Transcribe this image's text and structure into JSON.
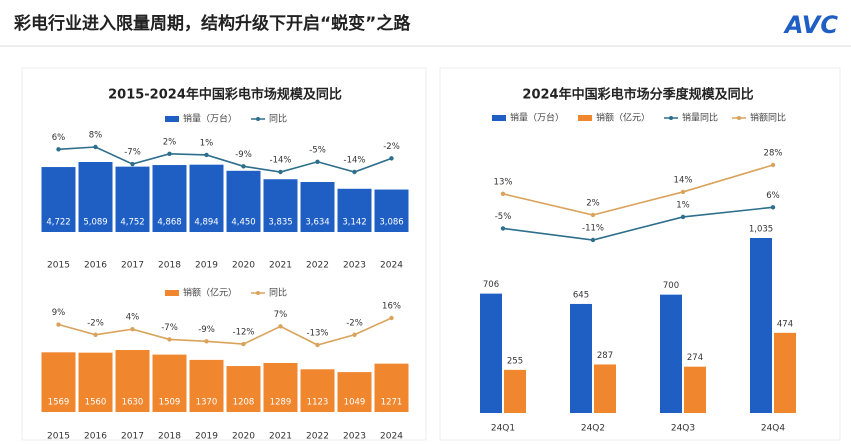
{
  "header": {
    "title": "彩电行业进入限量周期，结构升级下开启“蜕变”之路",
    "logo": "AVC"
  },
  "chart_data": [
    {
      "type": "combo",
      "title": "2015-2024年中国彩电市场规模及同比",
      "categories": [
        "2015",
        "2016",
        "2017",
        "2018",
        "2019",
        "2020",
        "2021",
        "2022",
        "2023",
        "2024"
      ],
      "series": [
        {
          "name": "销量（万台）",
          "type": "bar",
          "color": "#1f5fc4",
          "values": [
            4722,
            5089,
            4752,
            4868,
            4894,
            4450,
            3835,
            3634,
            3142,
            3086
          ],
          "value_labels": [
            "4,722",
            "5,089",
            "4,752",
            "4,868",
            "4,894",
            "4,450",
            "3,835",
            "3,634",
            "3,142",
            "3,086"
          ]
        },
        {
          "name": "同比",
          "type": "line",
          "color": "#2c6e8c",
          "values": [
            6,
            8,
            -7,
            2,
            1,
            -9,
            -14,
            -5,
            -14,
            -2
          ],
          "value_labels": [
            "6%",
            "8%",
            "-7%",
            "2%",
            "1%",
            "-9%",
            "-14%",
            "-5%",
            "-14%",
            "-2%"
          ]
        }
      ]
    },
    {
      "type": "combo",
      "categories": [
        "2015",
        "2016",
        "2017",
        "2018",
        "2019",
        "2020",
        "2021",
        "2022",
        "2023",
        "2024"
      ],
      "series": [
        {
          "name": "销额（亿元）",
          "type": "bar",
          "color": "#f0862e",
          "values": [
            1569,
            1560,
            1630,
            1509,
            1370,
            1208,
            1289,
            1123,
            1049,
            1271
          ]
        },
        {
          "name": "同比",
          "type": "line",
          "color": "#d9a35c",
          "values": [
            9,
            -2,
            4,
            -7,
            -9,
            -12,
            7,
            -13,
            -2,
            16
          ],
          "value_labels": [
            "9%",
            "-2%",
            "4%",
            "-7%",
            "-9%",
            "-12%",
            "7%",
            "-13%",
            "-2%",
            "16%"
          ]
        }
      ]
    },
    {
      "type": "combo",
      "title": "2024年中国彩电市场分季度规模及同比",
      "categories": [
        "24Q1",
        "24Q2",
        "24Q3",
        "24Q4"
      ],
      "series": [
        {
          "name": "销量（万台）",
          "type": "bar",
          "color": "#1f5fc4",
          "values": [
            706,
            645,
            700,
            1035
          ],
          "value_labels": [
            "706",
            "645",
            "700",
            "1,035"
          ]
        },
        {
          "name": "销额（亿元）",
          "type": "bar",
          "color": "#f0862e",
          "values": [
            255,
            287,
            274,
            474
          ]
        },
        {
          "name": "销量同比",
          "type": "line",
          "color": "#2c6e8c",
          "values": [
            -5,
            -11,
            1,
            6
          ],
          "value_labels": [
            "-5%",
            "-11%",
            "1%",
            "6%"
          ]
        },
        {
          "name": "销额同比",
          "type": "line",
          "color": "#d9a35c",
          "values": [
            13,
            2,
            14,
            28
          ],
          "value_labels": [
            "13%",
            "2%",
            "14%",
            "28%"
          ]
        }
      ]
    }
  ]
}
